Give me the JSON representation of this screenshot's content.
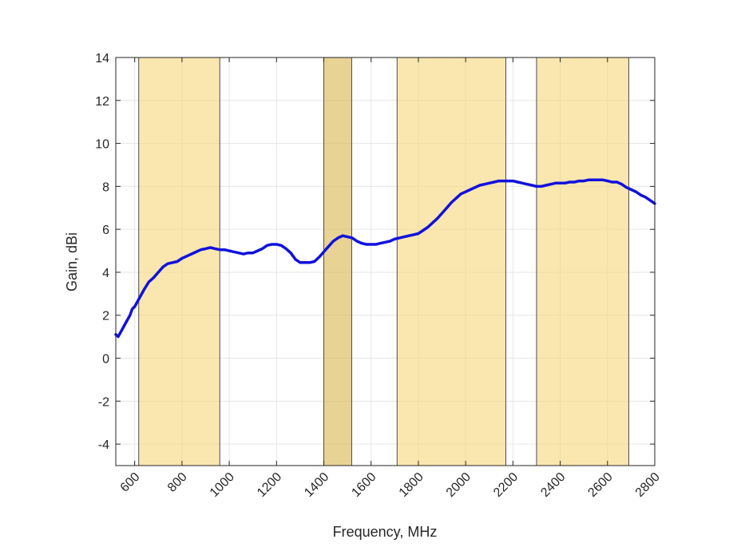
{
  "chart_data": {
    "type": "line",
    "xlabel": "Frequency, MHz",
    "ylabel": "Gain, dBi",
    "xlim": [
      520,
      2800
    ],
    "ylim": [
      -5,
      14
    ],
    "x_ticks": [
      600,
      800,
      1000,
      1200,
      1400,
      1600,
      1800,
      2000,
      2200,
      2400,
      2600,
      2800
    ],
    "x_tick_labels": [
      "600",
      "800",
      "1000",
      "1200",
      "1400",
      "1600",
      "1800",
      "2000",
      "2200",
      "2400",
      "2600",
      "2800"
    ],
    "y_ticks": [
      -4,
      -2,
      0,
      2,
      4,
      6,
      8,
      10,
      12,
      14
    ],
    "y_tick_labels": [
      "-4",
      "-2",
      "0",
      "2",
      "4",
      "6",
      "8",
      "10",
      "12",
      "14"
    ],
    "grid": true,
    "bands": [
      {
        "start": 617,
        "end": 960,
        "color": "#f5d77a"
      },
      {
        "start": 1400,
        "end": 1518,
        "color": "#d9b64e"
      },
      {
        "start": 1710,
        "end": 2170,
        "color": "#f5d77a"
      },
      {
        "start": 2300,
        "end": 2690,
        "color": "#f5d77a"
      }
    ],
    "series": [
      {
        "color": "#1111dd",
        "x": [
          520,
          530,
          540,
          550,
          560,
          570,
          580,
          590,
          600,
          620,
          640,
          660,
          680,
          700,
          720,
          740,
          760,
          780,
          800,
          820,
          840,
          860,
          880,
          900,
          920,
          940,
          960,
          980,
          1000,
          1020,
          1040,
          1060,
          1080,
          1100,
          1120,
          1140,
          1160,
          1180,
          1200,
          1220,
          1240,
          1260,
          1280,
          1300,
          1320,
          1340,
          1360,
          1380,
          1400,
          1420,
          1440,
          1460,
          1480,
          1500,
          1520,
          1540,
          1560,
          1580,
          1600,
          1620,
          1640,
          1660,
          1680,
          1700,
          1720,
          1740,
          1760,
          1780,
          1800,
          1820,
          1840,
          1860,
          1880,
          1900,
          1920,
          1940,
          1960,
          1980,
          2000,
          2020,
          2040,
          2060,
          2080,
          2100,
          2120,
          2140,
          2160,
          2180,
          2200,
          2220,
          2240,
          2260,
          2280,
          2300,
          2320,
          2340,
          2360,
          2380,
          2400,
          2420,
          2440,
          2460,
          2480,
          2500,
          2520,
          2540,
          2560,
          2580,
          2600,
          2620,
          2640,
          2660,
          2680,
          2700,
          2720,
          2740,
          2760,
          2780,
          2800
        ],
        "y": [
          1.1,
          1.0,
          1.2,
          1.4,
          1.6,
          1.8,
          2.0,
          2.3,
          2.4,
          2.8,
          3.2,
          3.55,
          3.75,
          4.0,
          4.25,
          4.4,
          4.45,
          4.5,
          4.65,
          4.75,
          4.85,
          4.95,
          5.05,
          5.1,
          5.15,
          5.1,
          5.05,
          5.05,
          5.0,
          4.95,
          4.9,
          4.85,
          4.9,
          4.9,
          5.0,
          5.1,
          5.25,
          5.3,
          5.3,
          5.25,
          5.1,
          4.9,
          4.6,
          4.45,
          4.45,
          4.45,
          4.5,
          4.7,
          4.95,
          5.2,
          5.45,
          5.6,
          5.7,
          5.65,
          5.6,
          5.45,
          5.35,
          5.3,
          5.3,
          5.3,
          5.35,
          5.4,
          5.45,
          5.55,
          5.6,
          5.65,
          5.7,
          5.75,
          5.8,
          5.95,
          6.1,
          6.3,
          6.5,
          6.75,
          7.0,
          7.25,
          7.45,
          7.65,
          7.75,
          7.85,
          7.95,
          8.05,
          8.1,
          8.15,
          8.2,
          8.25,
          8.25,
          8.25,
          8.25,
          8.2,
          8.15,
          8.1,
          8.05,
          8.0,
          8.0,
          8.05,
          8.1,
          8.15,
          8.15,
          8.15,
          8.2,
          8.2,
          8.25,
          8.25,
          8.3,
          8.3,
          8.3,
          8.3,
          8.25,
          8.2,
          8.2,
          8.1,
          7.95,
          7.85,
          7.75,
          7.6,
          7.5,
          7.35,
          7.2
        ]
      }
    ]
  }
}
